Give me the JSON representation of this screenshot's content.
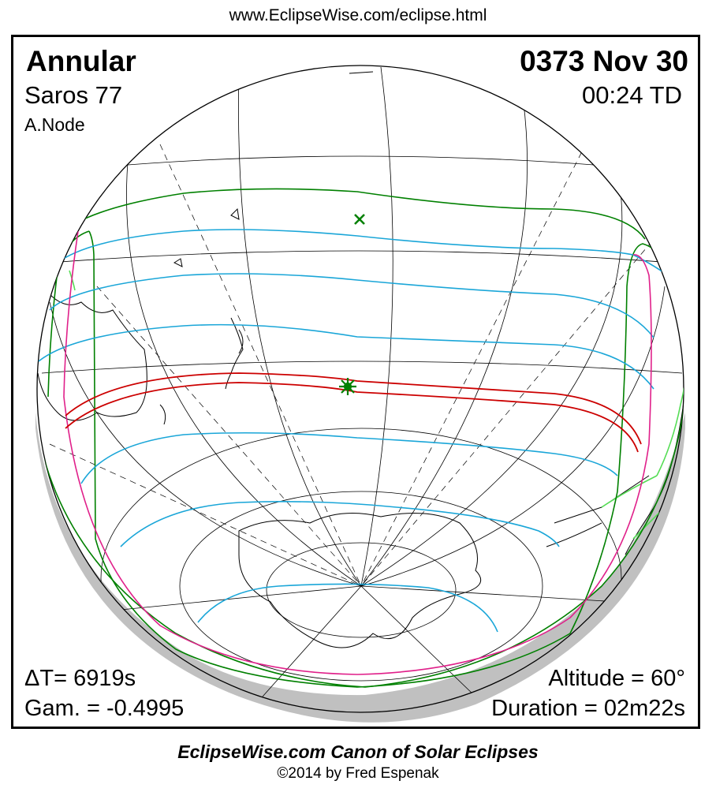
{
  "header_url": "www.EclipseWise.com/eclipse.html",
  "eclipse": {
    "type": "Annular",
    "saros": "Saros  77",
    "node": "A.Node",
    "date": "0373 Nov 30",
    "time": "00:24 TD",
    "delta_t": "ΔT=   6919s",
    "gamma": "Gam. = -0.4995",
    "altitude": "Altitude = 60°",
    "duration": "Duration = 02m22s"
  },
  "footer": {
    "title": "EclipseWise.com Canon of Solar Eclipses",
    "copyright": "©2014 by Fred Espenak"
  },
  "colors": {
    "penumbral_limits": "#008000",
    "magnitude_curves": "#1aa6d8",
    "central_path": "#cc0000",
    "rise_set_curves": "#e0208a",
    "coastlines_lit": "#55dd55",
    "night_side": "#c0c0c0"
  }
}
